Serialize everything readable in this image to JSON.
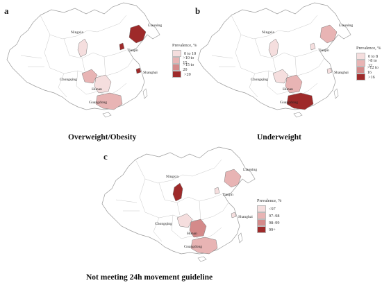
{
  "colors": {
    "c1": "#f5dede",
    "c2": "#e8b4b4",
    "c3": "#d48a8a",
    "c4": "#9e2a2a",
    "outline": "#9a9a9a",
    "province": "#c8c8c8"
  },
  "provinces": {
    "liaoning": "Liaoning",
    "ningxia": "Ningxia",
    "tianjin": "Tianjin",
    "shanghai": "Shanghai",
    "chongqing": "Chongqing",
    "hunan": "Hunan",
    "guangdong": "Guangdong"
  },
  "panels": [
    {
      "label": "a",
      "caption": "Overweight/Obesity",
      "legend_title": "Prevalence, %",
      "legend": [
        "0 to 10",
        ">10  to 15",
        ">15 to 20",
        ">20"
      ],
      "shade": {
        "liaoning": 4,
        "ningxia": 1,
        "tianjin": 4,
        "shanghai": 4,
        "chongqing": 2,
        "hunan": 1,
        "guangdong": 2
      }
    },
    {
      "label": "b",
      "caption": "Underweight",
      "legend_title": "Prevalence, %",
      "legend": [
        "0 to 8",
        ">8  to 12",
        ">12  to 16",
        ">16"
      ],
      "shade": {
        "liaoning": 2,
        "ningxia": 1,
        "tianjin": 1,
        "shanghai": 1,
        "chongqing": 1,
        "hunan": 2,
        "guangdong": 4
      }
    },
    {
      "label": "c",
      "caption": "Not meeting 24h movement guideline",
      "legend_title": "Prevalence, %",
      "legend": [
        "<97",
        "97–98",
        "98–99",
        "99+"
      ],
      "shade": {
        "liaoning": 2,
        "ningxia": 4,
        "tianjin": 1,
        "shanghai": 1,
        "chongqing": 1,
        "hunan": 3,
        "guangdong": 2
      }
    }
  ]
}
